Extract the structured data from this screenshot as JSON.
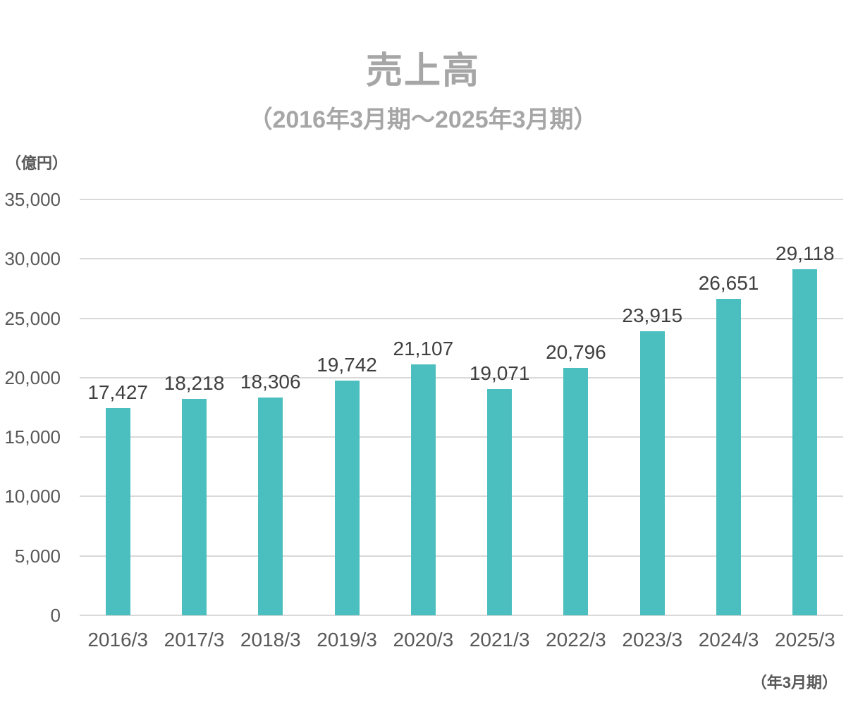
{
  "chart_data": {
    "type": "bar",
    "title": "売上高",
    "subtitle": "（2016年3月期～2025年3月期）",
    "ylabel": "（億円）",
    "xlabel": "（年3月期）",
    "categories": [
      "2016/3",
      "2017/3",
      "2018/3",
      "2019/3",
      "2020/3",
      "2021/3",
      "2022/3",
      "2023/3",
      "2024/3",
      "2025/3"
    ],
    "values": [
      17427,
      18218,
      18306,
      19742,
      21107,
      19071,
      20796,
      23915,
      26651,
      29118
    ],
    "value_labels": [
      "17,427",
      "18,218",
      "18,306",
      "19,742",
      "21,107",
      "19,071",
      "20,796",
      "23,915",
      "26,651",
      "29,118"
    ],
    "ylim": [
      0,
      35000
    ],
    "ytick_interval": 5000,
    "ytick_labels": [
      "0",
      "5,000",
      "10,000",
      "15,000",
      "20,000",
      "25,000",
      "30,000",
      "35,000"
    ],
    "grid": true,
    "legend": "none"
  },
  "colors": {
    "bar": "#4bbfbf",
    "title": "#a6a6a6",
    "subtitle": "#a6a6a6",
    "axis_text": "#595959",
    "value_label_text": "#3f3f3f",
    "gridline": "#d9d9d9",
    "background": "#ffffff"
  }
}
